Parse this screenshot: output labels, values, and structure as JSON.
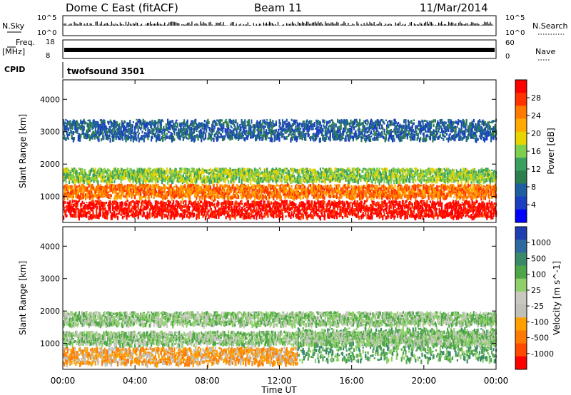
{
  "header": {
    "station": "Dome C East (fitACF)",
    "beam": "Beam 11",
    "date": "11/Mar/2014"
  },
  "strip_labels": {
    "nsky": "N.Sky",
    "nsky_top": "10^5",
    "nsky_bottom": "10^0",
    "nsearch": "N.Search",
    "nsearch_top": "10^5",
    "nsearch_bottom": "10^0",
    "freq": "Freq.",
    "freq_unit": "[MHz]",
    "freq_top": "18",
    "freq_bottom": "8",
    "nave": "Nave",
    "nave_top": "60",
    "nave_bottom": "0",
    "cpid": "CPID",
    "program": "twofsound 3501"
  },
  "chart_data": [
    {
      "type": "heatmap",
      "panel": "power",
      "ylabel": "Slant Range [km]",
      "y_ticks": [
        1000,
        2000,
        3000,
        4000
      ],
      "ylim": [
        200,
        4600
      ],
      "xlim": [
        "00:00",
        "24:00"
      ],
      "colorbar": {
        "label": "Power [dB]",
        "ticks": [
          "28",
          "24",
          "20",
          "16",
          "12",
          "8",
          "4"
        ],
        "colors": [
          "#ff0000",
          "#ff3300",
          "#ff7a00",
          "#ffaa00",
          "#e8d400",
          "#7fcf4f",
          "#3aa060",
          "#2e7f4f",
          "#1f5fa0",
          "#1a3fc0",
          "#0000ff"
        ]
      },
      "bands": [
        {
          "range_km": [
            400,
            900
          ],
          "level": "28",
          "time_h": [
            0.0,
            24.0
          ]
        },
        {
          "range_km": [
            1000,
            1400
          ],
          "level": "24",
          "time_h": [
            0.0,
            24.0
          ]
        },
        {
          "range_km": [
            1500,
            1900
          ],
          "level": "16",
          "time_h": [
            0.0,
            24.0
          ]
        },
        {
          "range_km": [
            2800,
            3400
          ],
          "level": "8",
          "time_h": [
            0.0,
            24.0
          ]
        }
      ]
    },
    {
      "type": "heatmap",
      "panel": "velocity",
      "ylabel": "Slant Range [km]",
      "y_ticks": [
        1000,
        2000,
        3000,
        4000
      ],
      "ylim": [
        200,
        4600
      ],
      "xlim": [
        "00:00",
        "24:00"
      ],
      "colorbar": {
        "label": "Velocity [m s^-1]",
        "ticks": [
          "1000",
          "500",
          "100",
          "25",
          "-25",
          "-100",
          "-500",
          "-1000"
        ],
        "colors": [
          "#1f3fb0",
          "#2e6aa0",
          "#3a8a6a",
          "#4fa64a",
          "#8fd06a",
          "#c8c8c0",
          "#c0c0b8",
          "#ffa000",
          "#ff7a00",
          "#ff4a00",
          "#ff0000"
        ]
      },
      "bands": [
        {
          "range_km": [
            400,
            900
          ],
          "level": "-100",
          "time_h": [
            0.0,
            13.0
          ]
        },
        {
          "range_km": [
            500,
            1500
          ],
          "level": "100",
          "time_h": [
            13.0,
            24.0
          ]
        },
        {
          "range_km": [
            1000,
            1400
          ],
          "level": "25",
          "time_h": [
            0.0,
            24.0
          ]
        },
        {
          "range_km": [
            1600,
            2000
          ],
          "level": "25",
          "time_h": [
            0.0,
            24.0
          ]
        }
      ]
    }
  ],
  "x_axis": {
    "ticks": [
      "00:00",
      "04:00",
      "08:00",
      "12:00",
      "16:00",
      "20:00",
      "00:00"
    ],
    "label": "Time UT"
  }
}
